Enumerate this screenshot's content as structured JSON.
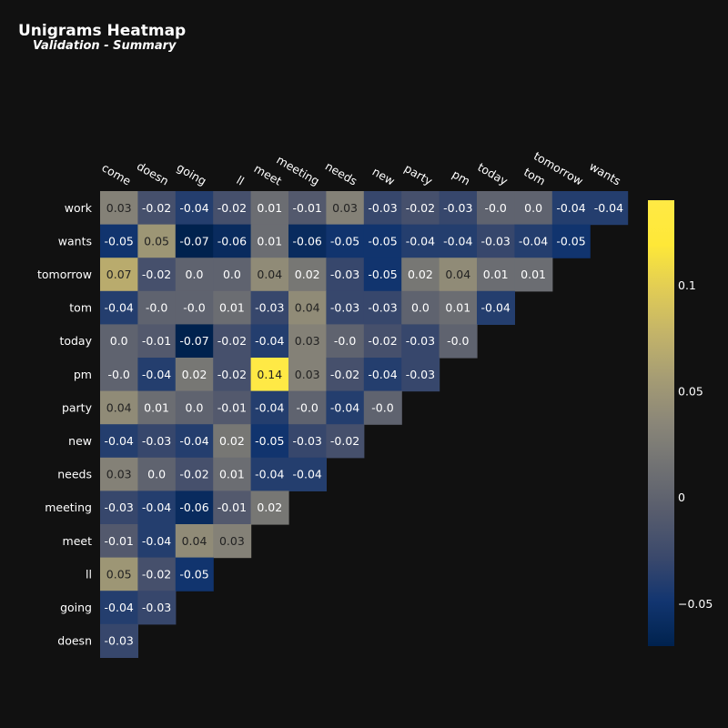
{
  "chart_data": {
    "type": "heatmap",
    "title": "Unigrams Heatmap",
    "subtitle": "Validation - Summary",
    "columns": [
      "come",
      "doesn",
      "going",
      "ll",
      "meet",
      "meeting",
      "needs",
      "new",
      "party",
      "pm",
      "today",
      "tom",
      "tomorrow",
      "wants"
    ],
    "rows": [
      "work",
      "wants",
      "tomorrow",
      "tom",
      "today",
      "pm",
      "party",
      "new",
      "needs",
      "meeting",
      "meet",
      "ll",
      "going",
      "doesn"
    ],
    "values": [
      [
        0.03,
        -0.02,
        -0.04,
        -0.02,
        0.01,
        -0.01,
        0.03,
        -0.03,
        -0.02,
        -0.03,
        -0.0,
        0.0,
        -0.04,
        -0.04
      ],
      [
        -0.05,
        0.05,
        -0.07,
        -0.06,
        0.01,
        -0.06,
        -0.05,
        -0.05,
        -0.04,
        -0.04,
        -0.03,
        -0.04,
        -0.05
      ],
      [
        0.07,
        -0.02,
        0.0,
        0.0,
        0.04,
        0.02,
        -0.03,
        -0.05,
        0.02,
        0.04,
        0.01,
        0.01
      ],
      [
        -0.04,
        -0.0,
        -0.0,
        0.01,
        -0.03,
        0.04,
        -0.03,
        -0.03,
        0.0,
        0.01,
        -0.04
      ],
      [
        0.0,
        -0.01,
        -0.07,
        -0.02,
        -0.04,
        0.03,
        -0.0,
        -0.02,
        -0.03,
        -0.0
      ],
      [
        -0.0,
        -0.04,
        0.02,
        -0.02,
        0.14,
        0.03,
        -0.02,
        -0.04,
        -0.03
      ],
      [
        0.04,
        0.01,
        0.0,
        -0.01,
        -0.04,
        -0.0,
        -0.04,
        -0.0
      ],
      [
        -0.04,
        -0.03,
        -0.04,
        0.02,
        -0.05,
        -0.03,
        -0.02
      ],
      [
        0.03,
        0.0,
        -0.02,
        0.01,
        -0.04,
        -0.04
      ],
      [
        -0.03,
        -0.04,
        -0.06,
        -0.01,
        0.02
      ],
      [
        -0.01,
        -0.04,
        0.04,
        0.03
      ],
      [
        0.05,
        -0.02,
        -0.05
      ],
      [
        -0.04,
        -0.03
      ],
      [
        -0.03
      ]
    ],
    "colorscale": "cividis",
    "zmin": -0.07,
    "zmax": 0.14,
    "colorbar": {
      "ticks": [
        0.1,
        0.05,
        0,
        -0.05
      ],
      "tick_labels": [
        "0.1",
        "0.05",
        "0",
        "−0.05"
      ]
    },
    "grid": false
  }
}
